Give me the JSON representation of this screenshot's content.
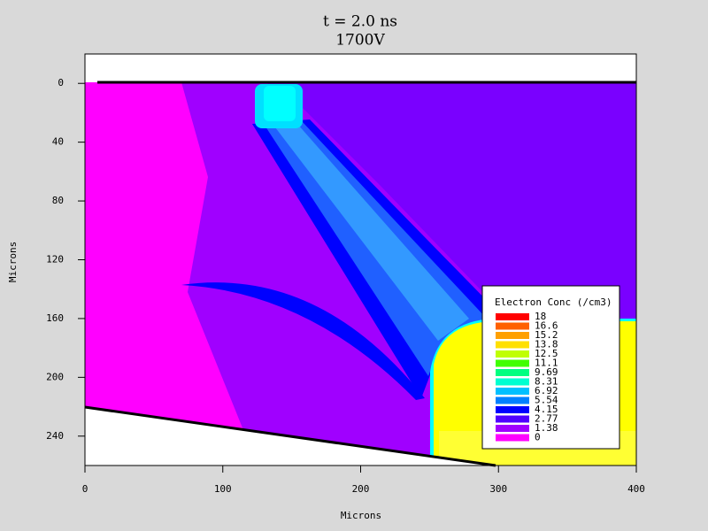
{
  "chart_data": {
    "type": "contour",
    "title": "t = 2.0 ns",
    "subtitle": "1700V",
    "xlabel": "Microns",
    "ylabel": "Microns",
    "xlim": [
      0,
      400
    ],
    "ylim": [
      -20,
      260
    ],
    "y_inverted": true,
    "xticks": [
      0,
      100,
      200,
      300,
      400
    ],
    "yticks": [
      0,
      40,
      80,
      120,
      160,
      200,
      240
    ],
    "legend": {
      "title": "Electron Conc (/cm3)",
      "levels": [
        18,
        16.6,
        15.2,
        13.8,
        12.5,
        11.1,
        9.69,
        8.31,
        6.92,
        5.54,
        4.15,
        2.77,
        1.38,
        0
      ],
      "colors": [
        "#ff0000",
        "#ff6000",
        "#ffa000",
        "#ffe000",
        "#c0ff00",
        "#40ff00",
        "#00ff80",
        "#00ffd0",
        "#00c0ff",
        "#0080ff",
        "#0000ff",
        "#5000ff",
        "#a000ff",
        "#ff00ff"
      ]
    }
  }
}
